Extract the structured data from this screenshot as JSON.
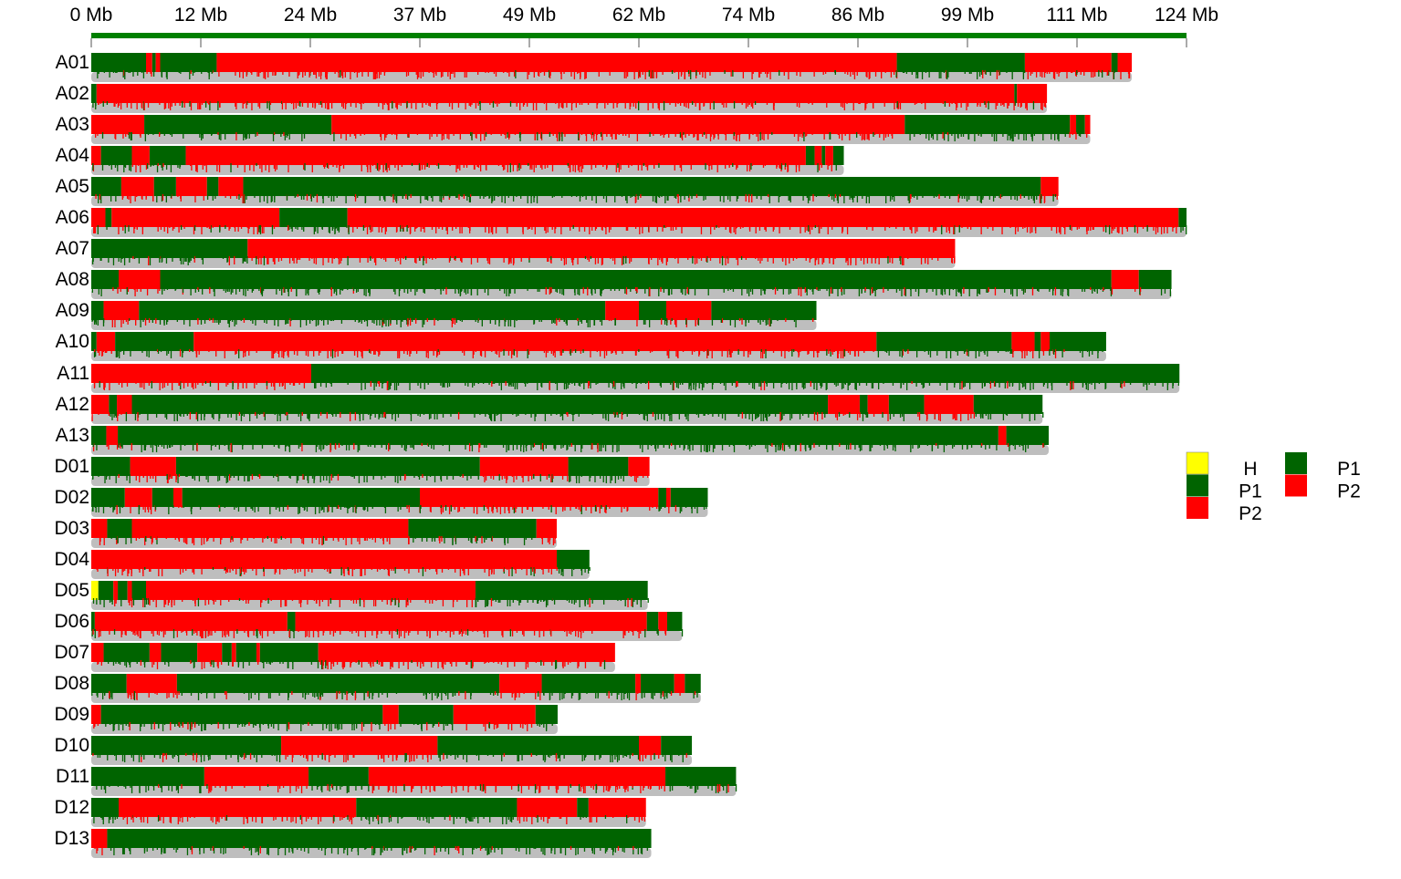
{
  "colors": {
    "P1": "#006400",
    "P2": "#ff0000",
    "H": "#ffff00",
    "density_track": "#bebebe",
    "axis": "#008000"
  },
  "axis": {
    "unit": "Mb",
    "max": 124,
    "ticks": [
      "0 Mb",
      "12 Mb",
      "24 Mb",
      "37 Mb",
      "49 Mb",
      "62 Mb",
      "74 Mb",
      "86 Mb",
      "99 Mb",
      "111 Mb",
      "124 Mb"
    ]
  },
  "legend": {
    "col1": [
      {
        "label": "H",
        "color": "#ffff00"
      },
      {
        "label": "P1",
        "color": "#006400"
      },
      {
        "label": "P2",
        "color": "#ff0000"
      }
    ],
    "col2": [
      {
        "label": "P1",
        "color": "#006400"
      },
      {
        "label": "P2",
        "color": "#ff0000"
      }
    ]
  },
  "chart_data": {
    "type": "chromosome-genotype-map",
    "axis_max_mb": 124,
    "chromosomes": [
      {
        "name": "A01",
        "length": 117.8,
        "segments": [
          [
            0,
            6.2,
            "P1"
          ],
          [
            6.2,
            6.9,
            "P2"
          ],
          [
            6.9,
            7.3,
            "P1"
          ],
          [
            7.3,
            7.8,
            "P2"
          ],
          [
            7.8,
            14.2,
            "P1"
          ],
          [
            14.2,
            91.2,
            "P2"
          ],
          [
            91.2,
            105.7,
            "P1"
          ],
          [
            105.7,
            115.5,
            "P2"
          ],
          [
            115.5,
            116.2,
            "P1"
          ],
          [
            116.2,
            117.8,
            "P2"
          ]
        ]
      },
      {
        "name": "A02",
        "length": 108.2,
        "segments": [
          [
            0,
            0.6,
            "P1"
          ],
          [
            0.6,
            104.5,
            "P2"
          ],
          [
            104.5,
            104.8,
            "P1"
          ],
          [
            104.8,
            108.2,
            "P2"
          ]
        ]
      },
      {
        "name": "A03",
        "length": 113.1,
        "segments": [
          [
            0,
            6.0,
            "P2"
          ],
          [
            6.0,
            27.2,
            "P1"
          ],
          [
            27.2,
            92.1,
            "P2"
          ],
          [
            92.1,
            110.8,
            "P1"
          ],
          [
            110.8,
            111.5,
            "P2"
          ],
          [
            111.5,
            112.5,
            "P1"
          ],
          [
            112.5,
            113.1,
            "P2"
          ]
        ]
      },
      {
        "name": "A04",
        "length": 85.2,
        "segments": [
          [
            0,
            1.1,
            "P2"
          ],
          [
            1.1,
            4.6,
            "P1"
          ],
          [
            4.6,
            6.6,
            "P2"
          ],
          [
            6.6,
            10.7,
            "P1"
          ],
          [
            10.7,
            80.9,
            "P2"
          ],
          [
            80.9,
            81.9,
            "P1"
          ],
          [
            81.9,
            82.7,
            "P2"
          ],
          [
            82.7,
            83.1,
            "P1"
          ],
          [
            83.1,
            84.0,
            "P2"
          ],
          [
            84.0,
            85.2,
            "P1"
          ]
        ]
      },
      {
        "name": "A05",
        "length": 109.5,
        "segments": [
          [
            0,
            3.4,
            "P1"
          ],
          [
            3.4,
            7.1,
            "P2"
          ],
          [
            7.1,
            9.6,
            "P1"
          ],
          [
            9.6,
            13.1,
            "P2"
          ],
          [
            13.1,
            14.4,
            "P1"
          ],
          [
            14.4,
            17.2,
            "P2"
          ],
          [
            17.2,
            107.5,
            "P1"
          ],
          [
            107.5,
            109.5,
            "P2"
          ]
        ]
      },
      {
        "name": "A06",
        "length": 124.0,
        "segments": [
          [
            0,
            1.6,
            "P2"
          ],
          [
            1.6,
            2.3,
            "P1"
          ],
          [
            2.3,
            21.3,
            "P2"
          ],
          [
            21.3,
            29.0,
            "P1"
          ],
          [
            29.0,
            123.1,
            "P2"
          ],
          [
            123.1,
            124.0,
            "P1"
          ]
        ]
      },
      {
        "name": "A07",
        "length": 97.8,
        "segments": [
          [
            0,
            17.7,
            "P1"
          ],
          [
            17.7,
            97.8,
            "P2"
          ]
        ]
      },
      {
        "name": "A08",
        "length": 122.3,
        "segments": [
          [
            0,
            3.1,
            "P1"
          ],
          [
            3.1,
            7.8,
            "P2"
          ],
          [
            7.8,
            115.5,
            "P1"
          ],
          [
            115.5,
            118.6,
            "P2"
          ],
          [
            118.6,
            122.3,
            "P1"
          ]
        ]
      },
      {
        "name": "A09",
        "length": 82.1,
        "segments": [
          [
            0,
            1.4,
            "P1"
          ],
          [
            1.4,
            5.4,
            "P2"
          ],
          [
            5.4,
            58.2,
            "P1"
          ],
          [
            58.2,
            62.0,
            "P2"
          ],
          [
            62.0,
            65.1,
            "P1"
          ],
          [
            65.1,
            70.2,
            "P2"
          ],
          [
            70.2,
            82.1,
            "P1"
          ]
        ]
      },
      {
        "name": "A10",
        "length": 114.9,
        "segments": [
          [
            0,
            0.6,
            "P1"
          ],
          [
            0.6,
            2.7,
            "P2"
          ],
          [
            2.7,
            11.6,
            "P1"
          ],
          [
            11.6,
            88.9,
            "P2"
          ],
          [
            88.9,
            104.2,
            "P1"
          ],
          [
            104.2,
            106.8,
            "P2"
          ],
          [
            106.8,
            107.5,
            "P1"
          ],
          [
            107.5,
            108.5,
            "P2"
          ],
          [
            108.5,
            114.9,
            "P1"
          ]
        ]
      },
      {
        "name": "A11",
        "length": 123.2,
        "segments": [
          [
            0,
            24.9,
            "P2"
          ],
          [
            24.9,
            123.2,
            "P1"
          ]
        ]
      },
      {
        "name": "A12",
        "length": 107.7,
        "segments": [
          [
            0,
            2.0,
            "P2"
          ],
          [
            2.0,
            2.9,
            "P1"
          ],
          [
            2.9,
            4.6,
            "P2"
          ],
          [
            4.6,
            83.4,
            "P1"
          ],
          [
            83.4,
            87.0,
            "P2"
          ],
          [
            87.0,
            87.9,
            "P1"
          ],
          [
            87.9,
            90.3,
            "P2"
          ],
          [
            90.3,
            94.3,
            "P1"
          ],
          [
            94.3,
            99.9,
            "P2"
          ],
          [
            99.9,
            107.7,
            "P1"
          ]
        ]
      },
      {
        "name": "A13",
        "length": 108.4,
        "segments": [
          [
            0,
            1.7,
            "P1"
          ],
          [
            1.7,
            3.0,
            "P2"
          ],
          [
            3.0,
            102.7,
            "P1"
          ],
          [
            102.7,
            103.6,
            "P2"
          ],
          [
            103.6,
            108.4,
            "P1"
          ]
        ]
      },
      {
        "name": "D01",
        "length": 63.2,
        "segments": [
          [
            0,
            4.4,
            "P1"
          ],
          [
            4.4,
            9.6,
            "P2"
          ],
          [
            9.6,
            44.0,
            "P1"
          ],
          [
            44.0,
            54.0,
            "P2"
          ],
          [
            54.0,
            60.8,
            "P1"
          ],
          [
            60.8,
            63.2,
            "P2"
          ]
        ]
      },
      {
        "name": "D02",
        "length": 69.8,
        "segments": [
          [
            0,
            3.8,
            "P1"
          ],
          [
            3.8,
            6.9,
            "P2"
          ],
          [
            6.9,
            9.3,
            "P1"
          ],
          [
            9.3,
            10.3,
            "P2"
          ],
          [
            10.3,
            37.2,
            "P1"
          ],
          [
            37.2,
            64.2,
            "P2"
          ],
          [
            64.2,
            65.1,
            "P1"
          ],
          [
            65.1,
            65.6,
            "P2"
          ],
          [
            65.6,
            69.8,
            "P1"
          ]
        ]
      },
      {
        "name": "D03",
        "length": 52.7,
        "segments": [
          [
            0,
            1.8,
            "P2"
          ],
          [
            1.8,
            4.6,
            "P1"
          ],
          [
            4.6,
            35.9,
            "P2"
          ],
          [
            35.9,
            50.4,
            "P1"
          ],
          [
            50.4,
            52.7,
            "P2"
          ]
        ]
      },
      {
        "name": "D04",
        "length": 56.4,
        "segments": [
          [
            0,
            52.7,
            "P2"
          ],
          [
            52.7,
            56.4,
            "P1"
          ]
        ]
      },
      {
        "name": "D05",
        "length": 63.0,
        "segments": [
          [
            0,
            0.8,
            "H"
          ],
          [
            0.8,
            2.5,
            "P1"
          ],
          [
            2.5,
            3.0,
            "P2"
          ],
          [
            3.0,
            4.1,
            "P1"
          ],
          [
            4.1,
            4.6,
            "P2"
          ],
          [
            4.6,
            6.2,
            "P1"
          ],
          [
            6.2,
            43.5,
            "P2"
          ],
          [
            43.5,
            63.0,
            "P1"
          ]
        ]
      },
      {
        "name": "D06",
        "length": 66.9,
        "segments": [
          [
            0,
            0.4,
            "P1"
          ],
          [
            0.4,
            22.2,
            "P2"
          ],
          [
            22.2,
            23.1,
            "P1"
          ],
          [
            23.1,
            62.9,
            "P2"
          ],
          [
            62.9,
            64.2,
            "P1"
          ],
          [
            64.2,
            65.2,
            "P2"
          ],
          [
            65.2,
            66.9,
            "P1"
          ]
        ]
      },
      {
        "name": "D07",
        "length": 59.3,
        "segments": [
          [
            0,
            1.4,
            "P2"
          ],
          [
            1.4,
            6.6,
            "P1"
          ],
          [
            6.6,
            7.9,
            "P2"
          ],
          [
            7.9,
            12.0,
            "P1"
          ],
          [
            12.0,
            14.8,
            "P2"
          ],
          [
            14.8,
            15.9,
            "P1"
          ],
          [
            15.9,
            16.4,
            "P2"
          ],
          [
            16.4,
            18.7,
            "P1"
          ],
          [
            18.7,
            19.1,
            "P2"
          ],
          [
            19.1,
            25.7,
            "P1"
          ],
          [
            25.7,
            59.3,
            "P2"
          ]
        ]
      },
      {
        "name": "D08",
        "length": 69.0,
        "segments": [
          [
            0,
            4.0,
            "P1"
          ],
          [
            4.0,
            9.7,
            "P2"
          ],
          [
            9.7,
            46.2,
            "P1"
          ],
          [
            46.2,
            51.0,
            "P2"
          ],
          [
            51.0,
            61.6,
            "P1"
          ],
          [
            61.6,
            62.2,
            "P2"
          ],
          [
            62.2,
            66.0,
            "P1"
          ],
          [
            66.0,
            67.2,
            "P2"
          ],
          [
            67.2,
            69.0,
            "P1"
          ]
        ]
      },
      {
        "name": "D09",
        "length": 52.8,
        "segments": [
          [
            0,
            1.1,
            "P2"
          ],
          [
            1.1,
            33.0,
            "P1"
          ],
          [
            33.0,
            34.8,
            "P2"
          ],
          [
            34.8,
            41.0,
            "P1"
          ],
          [
            41.0,
            50.3,
            "P2"
          ],
          [
            50.3,
            52.8,
            "P1"
          ]
        ]
      },
      {
        "name": "D10",
        "length": 68.0,
        "segments": [
          [
            0,
            21.5,
            "P1"
          ],
          [
            21.5,
            39.2,
            "P2"
          ],
          [
            39.2,
            62.0,
            "P1"
          ],
          [
            62.0,
            64.5,
            "P2"
          ],
          [
            64.5,
            68.0,
            "P1"
          ]
        ]
      },
      {
        "name": "D11",
        "length": 73.0,
        "segments": [
          [
            0,
            12.8,
            "P1"
          ],
          [
            12.8,
            24.6,
            "P2"
          ],
          [
            24.6,
            31.4,
            "P1"
          ],
          [
            31.4,
            65.0,
            "P2"
          ],
          [
            65.0,
            73.0,
            "P1"
          ]
        ]
      },
      {
        "name": "D12",
        "length": 62.8,
        "segments": [
          [
            0,
            3.1,
            "P1"
          ],
          [
            3.1,
            30.0,
            "P2"
          ],
          [
            30.0,
            48.2,
            "P1"
          ],
          [
            48.2,
            55.0,
            "P2"
          ],
          [
            55.0,
            56.3,
            "P1"
          ],
          [
            56.3,
            62.8,
            "P2"
          ]
        ]
      },
      {
        "name": "D13",
        "length": 63.4,
        "segments": [
          [
            0,
            1.8,
            "P2"
          ],
          [
            1.8,
            63.4,
            "P1"
          ]
        ]
      }
    ]
  }
}
